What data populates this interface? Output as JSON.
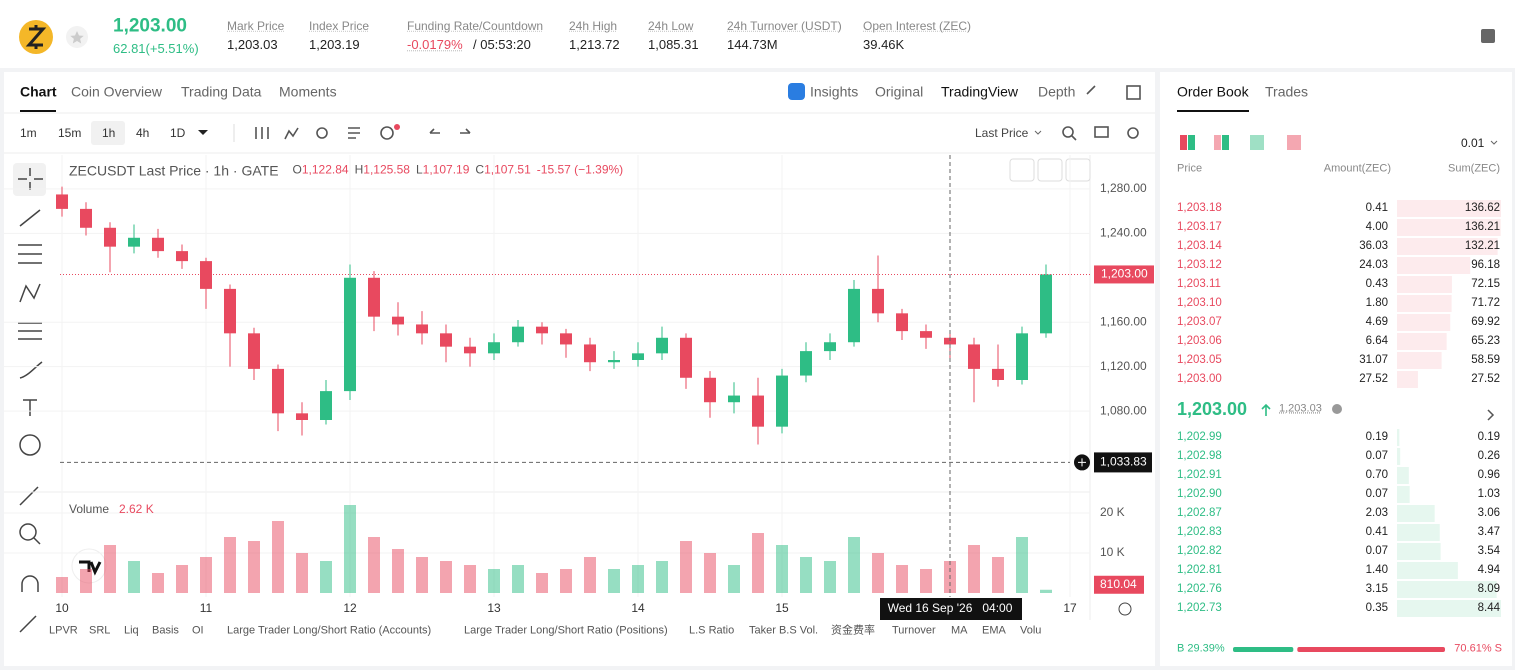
{
  "header": {
    "price": "1,203.00",
    "change": "62.81(+5.51%)",
    "stats": [
      {
        "label": "Mark Price",
        "value": "1,203.03"
      },
      {
        "label": "Index Price",
        "value": "1,203.19"
      },
      {
        "label": "Funding Rate/Countdown",
        "value": "-0.0179%",
        "countdown": "/ 05:53:20"
      },
      {
        "label": "24h High",
        "value": "1,213.72"
      },
      {
        "label": "24h Low",
        "value": "1,085.31"
      },
      {
        "label": "24h Turnover (USDT)",
        "value": "144.73M"
      },
      {
        "label": "Open Interest (ZEC)",
        "value": "39.46K"
      }
    ]
  },
  "tabs": [
    "Chart",
    "Coin Overview",
    "Trading Data",
    "Moments"
  ],
  "view_tabs": [
    "Insights",
    "Original",
    "TradingView",
    "Depth"
  ],
  "intervals": [
    "1m",
    "15m",
    "1h",
    "4h",
    "1D"
  ],
  "price_type": "Last Price",
  "indicators": [
    "LPVR",
    "SRL",
    "Liq",
    "Basis",
    "OI",
    "Large Trader Long/Short Ratio (Accounts)",
    "Large Trader Long/Short Ratio (Positions)",
    "L.S Ratio",
    "Taker B.S Vol.",
    "资金费率",
    "Turnover",
    "MA",
    "EMA",
    "Volu"
  ],
  "chart_data": {
    "type": "candlestick",
    "title": "ZECUSDT Last Price · 1h · GATE",
    "ohlc": [
      {
        "key": "O",
        "value": "1,122.84"
      },
      {
        "key": "H",
        "value": "1,125.58"
      },
      {
        "key": "L",
        "value": "1,107.19"
      },
      {
        "key": "C",
        "value": "1,107.51"
      }
    ],
    "change": "-15.57 (−1.39%)",
    "candles": [
      [
        1275,
        1282,
        1255,
        1262
      ],
      [
        1262,
        1268,
        1238,
        1245
      ],
      [
        1245,
        1250,
        1205,
        1228
      ],
      [
        1228,
        1248,
        1222,
        1236
      ],
      [
        1236,
        1244,
        1218,
        1224
      ],
      [
        1224,
        1230,
        1208,
        1215
      ],
      [
        1215,
        1218,
        1172,
        1190
      ],
      [
        1190,
        1194,
        1120,
        1150
      ],
      [
        1150,
        1155,
        1108,
        1118
      ],
      [
        1118,
        1122,
        1062,
        1078
      ],
      [
        1078,
        1088,
        1058,
        1072
      ],
      [
        1072,
        1108,
        1068,
        1098
      ],
      [
        1098,
        1212,
        1090,
        1200
      ],
      [
        1200,
        1206,
        1152,
        1165
      ],
      [
        1165,
        1178,
        1148,
        1158
      ],
      [
        1158,
        1170,
        1140,
        1150
      ],
      [
        1150,
        1158,
        1124,
        1138
      ],
      [
        1138,
        1146,
        1120,
        1132
      ],
      [
        1132,
        1150,
        1126,
        1142
      ],
      [
        1142,
        1162,
        1138,
        1156
      ],
      [
        1156,
        1160,
        1140,
        1150
      ],
      [
        1150,
        1154,
        1128,
        1140
      ],
      [
        1140,
        1146,
        1116,
        1124
      ],
      [
        1124,
        1134,
        1118,
        1126
      ],
      [
        1126,
        1142,
        1120,
        1132
      ],
      [
        1132,
        1156,
        1126,
        1146
      ],
      [
        1146,
        1150,
        1100,
        1110
      ],
      [
        1110,
        1116,
        1074,
        1088
      ],
      [
        1088,
        1106,
        1078,
        1094
      ],
      [
        1094,
        1110,
        1050,
        1066
      ],
      [
        1066,
        1118,
        1060,
        1112
      ],
      [
        1112,
        1142,
        1106,
        1134
      ],
      [
        1134,
        1150,
        1126,
        1142
      ],
      [
        1142,
        1198,
        1138,
        1190
      ],
      [
        1190,
        1220,
        1160,
        1168
      ],
      [
        1168,
        1172,
        1144,
        1152
      ],
      [
        1152,
        1158,
        1136,
        1146
      ],
      [
        1146,
        1152,
        1126,
        1140
      ],
      [
        1140,
        1146,
        1088,
        1118
      ],
      [
        1118,
        1140,
        1102,
        1108
      ],
      [
        1108,
        1156,
        1104,
        1150
      ],
      [
        1150,
        1212,
        1146,
        1203
      ]
    ],
    "volumes": [
      4,
      6,
      12,
      8,
      5,
      7,
      9,
      14,
      13,
      18,
      10,
      8,
      22,
      14,
      11,
      9,
      8,
      7,
      6,
      7,
      5,
      6,
      9,
      6,
      7,
      8,
      13,
      10,
      7,
      15,
      12,
      9,
      8,
      14,
      10,
      7,
      6,
      8,
      12,
      9,
      14,
      0.81004
    ],
    "up_color": "#2ebd85",
    "down_color": "#e8495f",
    "ylim": [
      1009,
      1306
    ],
    "yticks": [
      {
        "value": 1280,
        "label": "1,280.00"
      },
      {
        "value": 1240,
        "label": "1,240.00"
      },
      {
        "value": 1160,
        "label": "1,160.00"
      },
      {
        "value": 1120,
        "label": "1,120.00"
      },
      {
        "value": 1080,
        "label": "1,080.00"
      }
    ],
    "xlim": [
      0,
      42
    ],
    "xticks": [
      {
        "value": 0,
        "label": "10"
      },
      {
        "value": 6,
        "label": "11"
      },
      {
        "value": 12,
        "label": "12"
      },
      {
        "value": 18,
        "label": "13"
      },
      {
        "value": 24,
        "label": "14"
      },
      {
        "value": 30,
        "label": "15"
      },
      {
        "value": 42,
        "label": "17"
      }
    ],
    "volume_title": "Volume",
    "volume_value": "2.62 K",
    "vlim": [
      0,
      23.25
    ],
    "vticks": [
      {
        "value": 20,
        "label": "20 K"
      },
      {
        "value": 10,
        "label": "10 K"
      }
    ],
    "last_price": {
      "value": 1203,
      "label": "1,203.00"
    },
    "last_volume": {
      "value": 0.81004,
      "label": "810.04"
    },
    "crosshair": {
      "x": 37,
      "x_label": "Wed 16 Sep '26   04:00",
      "y": 1033.83,
      "y_label": "1,033.83"
    }
  },
  "order_book": {
    "tabs": [
      "Order Book",
      "Trades"
    ],
    "precision": "0.01",
    "columns": [
      "Price",
      "Amount(ZEC)",
      "Sum(ZEC)"
    ],
    "asks": [
      [
        "1,203.18",
        "0.41",
        "136.62"
      ],
      [
        "1,203.17",
        "4.00",
        "136.21"
      ],
      [
        "1,203.14",
        "36.03",
        "132.21"
      ],
      [
        "1,203.12",
        "24.03",
        "96.18"
      ],
      [
        "1,203.11",
        "0.43",
        "72.15"
      ],
      [
        "1,203.10",
        "1.80",
        "71.72"
      ],
      [
        "1,203.07",
        "4.69",
        "69.92"
      ],
      [
        "1,203.06",
        "6.64",
        "65.23"
      ],
      [
        "1,203.05",
        "31.07",
        "58.59"
      ],
      [
        "1,203.00",
        "27.52",
        "27.52"
      ]
    ],
    "mid_price": "1,203.00",
    "mark_price": "1,203.03",
    "bids": [
      [
        "1,202.99",
        "0.19",
        "0.19"
      ],
      [
        "1,202.98",
        "0.07",
        "0.26"
      ],
      [
        "1,202.91",
        "0.70",
        "0.96"
      ],
      [
        "1,202.90",
        "0.07",
        "1.03"
      ],
      [
        "1,202.87",
        "2.03",
        "3.06"
      ],
      [
        "1,202.83",
        "0.41",
        "3.47"
      ],
      [
        "1,202.82",
        "0.07",
        "3.54"
      ],
      [
        "1,202.81",
        "1.40",
        "4.94"
      ],
      [
        "1,202.76",
        "3.15",
        "8.09"
      ],
      [
        "1,202.73",
        "0.35",
        "8.44"
      ]
    ],
    "buy": {
      "value": 29.39,
      "label": "B 29.39%"
    },
    "sell": {
      "value": 70.61,
      "label": "70.61% S"
    }
  }
}
